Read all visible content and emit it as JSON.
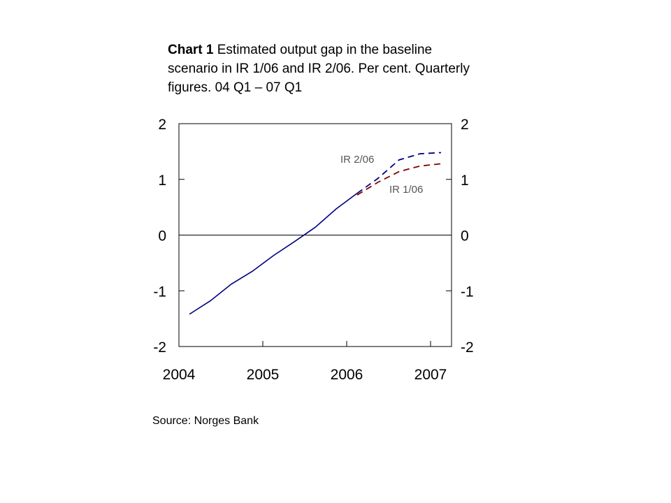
{
  "title": {
    "bold": "Chart 1",
    "text": "Estimated output gap in the baseline scenario in IR 1/06 and IR 2/06. Per cent. Quarterly figures. 04 Q1 – 07 Q1"
  },
  "source": "Source: Norges Bank",
  "chart_data": {
    "type": "line",
    "xlim": [
      2004,
      2007.25
    ],
    "ylim": [
      -2,
      2
    ],
    "x_ticks": [
      "2004",
      "2005",
      "2006",
      "2007"
    ],
    "y_ticks": [
      "-2",
      "-1",
      "0",
      "1",
      "2"
    ],
    "grid": false,
    "zero_line": true,
    "x": [
      "04 Q1",
      "04 Q2",
      "04 Q3",
      "04 Q4",
      "05 Q1",
      "05 Q2",
      "05 Q3",
      "05 Q4",
      "06 Q1",
      "06 Q2",
      "06 Q3",
      "06 Q4",
      "07 Q1"
    ],
    "history": [
      -1.42,
      -1.18,
      -0.88,
      -0.65,
      -0.37,
      -0.12,
      0.14,
      0.47,
      0.75
    ],
    "series": [
      {
        "name": "IR 2/06",
        "color": "#000080",
        "style": "dashed",
        "x": [
          "06 Q1",
          "06 Q2",
          "06 Q3",
          "06 Q4",
          "07 Q1"
        ],
        "values": [
          0.75,
          1.02,
          1.35,
          1.46,
          1.48
        ]
      },
      {
        "name": "IR 1/06",
        "color": "#800000",
        "style": "dashed",
        "x": [
          "06 Q1",
          "06 Q2",
          "06 Q3",
          "06 Q4",
          "07 Q1"
        ],
        "values": [
          0.72,
          0.95,
          1.14,
          1.24,
          1.28
        ]
      }
    ]
  }
}
